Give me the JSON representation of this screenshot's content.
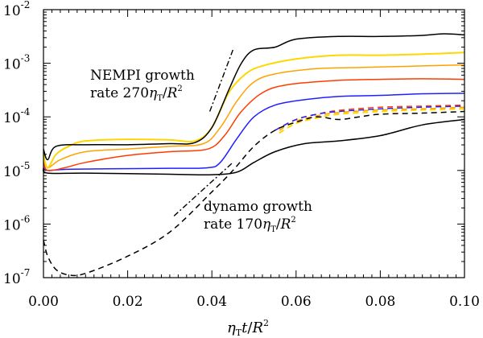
{
  "chart_data": {
    "type": "line",
    "title": "",
    "xlabel": "ηTt/R²",
    "ylabel": "",
    "xlim": [
      0.0,
      0.1
    ],
    "ylim_log10": [
      -7,
      -2
    ],
    "y_scale": "log",
    "x_ticks": [
      {
        "value": 0.0,
        "label": "0.00"
      },
      {
        "value": 0.02,
        "label": "0.02"
      },
      {
        "value": 0.04,
        "label": "0.04"
      },
      {
        "value": 0.06,
        "label": "0.06"
      },
      {
        "value": 0.08,
        "label": "0.08"
      },
      {
        "value": 0.1,
        "label": "0.10"
      }
    ],
    "y_ticks": [
      {
        "exp": -2,
        "base": "10",
        "sup": "-2"
      },
      {
        "exp": -3,
        "base": "10",
        "sup": "-3"
      },
      {
        "exp": -4,
        "base": "10",
        "sup": "-4"
      },
      {
        "exp": -5,
        "base": "10",
        "sup": "-5"
      },
      {
        "exp": -6,
        "base": "10",
        "sup": "-6"
      },
      {
        "exp": -7,
        "base": "10",
        "sup": "-7"
      }
    ],
    "annotations": {
      "nempi_line1": "NEMPI growth",
      "nempi_rate_prefix": "rate 270",
      "nempi_eta": "η",
      "nempi_eta_sub": "T",
      "nempi_over": "/",
      "nempi_R": "R",
      "nempi_R_sup": "2",
      "dynamo_line1": "dynamo growth",
      "dynamo_rate_prefix": "rate 170",
      "dynamo_eta": "η",
      "dynamo_eta_sub": "T",
      "dynamo_over": "/",
      "dynamo_R": "R",
      "dynamo_R_sup": "2"
    },
    "xlabel_parts": {
      "eta": "η",
      "eta_sub": "T",
      "t": "t",
      "over": "/",
      "R": "R",
      "R_sup": "2"
    },
    "series": [
      {
        "name": "black-solid-top",
        "color": "#000000",
        "dash": "solid",
        "points": [
          [
            0.0,
            -4.6
          ],
          [
            0.001,
            -4.8
          ],
          [
            0.003,
            -4.55
          ],
          [
            0.01,
            -4.52
          ],
          [
            0.02,
            -4.52
          ],
          [
            0.03,
            -4.5
          ],
          [
            0.036,
            -4.48
          ],
          [
            0.04,
            -4.2
          ],
          [
            0.044,
            -3.5
          ],
          [
            0.047,
            -3.0
          ],
          [
            0.05,
            -2.75
          ],
          [
            0.055,
            -2.7
          ],
          [
            0.06,
            -2.55
          ],
          [
            0.07,
            -2.5
          ],
          [
            0.08,
            -2.5
          ],
          [
            0.09,
            -2.48
          ],
          [
            0.095,
            -2.45
          ],
          [
            0.1,
            -2.47
          ]
        ]
      },
      {
        "name": "yellow-solid",
        "color": "#ffd700",
        "dash": "solid",
        "points": [
          [
            0.0,
            -4.7
          ],
          [
            0.001,
            -4.95
          ],
          [
            0.003,
            -4.7
          ],
          [
            0.006,
            -4.55
          ],
          [
            0.01,
            -4.45
          ],
          [
            0.02,
            -4.42
          ],
          [
            0.03,
            -4.43
          ],
          [
            0.036,
            -4.45
          ],
          [
            0.04,
            -4.2
          ],
          [
            0.044,
            -3.55
          ],
          [
            0.048,
            -3.2
          ],
          [
            0.052,
            -3.05
          ],
          [
            0.06,
            -2.92
          ],
          [
            0.07,
            -2.85
          ],
          [
            0.08,
            -2.85
          ],
          [
            0.09,
            -2.83
          ],
          [
            0.1,
            -2.8
          ]
        ]
      },
      {
        "name": "orange-solid",
        "color": "#ffa200",
        "dash": "solid",
        "points": [
          [
            0.0,
            -4.75
          ],
          [
            0.001,
            -4.95
          ],
          [
            0.004,
            -4.8
          ],
          [
            0.01,
            -4.65
          ],
          [
            0.02,
            -4.6
          ],
          [
            0.03,
            -4.55
          ],
          [
            0.038,
            -4.5
          ],
          [
            0.042,
            -4.2
          ],
          [
            0.046,
            -3.7
          ],
          [
            0.05,
            -3.35
          ],
          [
            0.055,
            -3.2
          ],
          [
            0.065,
            -3.1
          ],
          [
            0.075,
            -3.08
          ],
          [
            0.09,
            -3.05
          ],
          [
            0.1,
            -3.03
          ]
        ]
      },
      {
        "name": "red-solid",
        "color": "#ff3c00",
        "dash": "solid",
        "points": [
          [
            0.0,
            -4.85
          ],
          [
            0.001,
            -5.0
          ],
          [
            0.005,
            -4.95
          ],
          [
            0.01,
            -4.85
          ],
          [
            0.02,
            -4.72
          ],
          [
            0.03,
            -4.65
          ],
          [
            0.039,
            -4.6
          ],
          [
            0.043,
            -4.35
          ],
          [
            0.047,
            -3.9
          ],
          [
            0.052,
            -3.55
          ],
          [
            0.058,
            -3.4
          ],
          [
            0.07,
            -3.32
          ],
          [
            0.08,
            -3.3
          ],
          [
            0.09,
            -3.29
          ],
          [
            0.1,
            -3.3
          ]
        ]
      },
      {
        "name": "blue-solid",
        "color": "#2020ff",
        "dash": "solid",
        "points": [
          [
            0.0,
            -4.95
          ],
          [
            0.001,
            -5.0
          ],
          [
            0.005,
            -4.98
          ],
          [
            0.015,
            -4.97
          ],
          [
            0.03,
            -4.96
          ],
          [
            0.039,
            -4.95
          ],
          [
            0.042,
            -4.85
          ],
          [
            0.046,
            -4.4
          ],
          [
            0.05,
            -4.0
          ],
          [
            0.055,
            -3.78
          ],
          [
            0.062,
            -3.68
          ],
          [
            0.07,
            -3.62
          ],
          [
            0.08,
            -3.6
          ],
          [
            0.09,
            -3.57
          ],
          [
            0.1,
            -3.56
          ]
        ]
      },
      {
        "name": "black-solid-bottom",
        "color": "#000000",
        "dash": "solid",
        "points": [
          [
            0.0,
            -4.95
          ],
          [
            0.001,
            -5.05
          ],
          [
            0.01,
            -5.05
          ],
          [
            0.03,
            -5.07
          ],
          [
            0.04,
            -5.08
          ],
          [
            0.046,
            -5.03
          ],
          [
            0.05,
            -4.85
          ],
          [
            0.055,
            -4.65
          ],
          [
            0.062,
            -4.5
          ],
          [
            0.07,
            -4.45
          ],
          [
            0.08,
            -4.35
          ],
          [
            0.09,
            -4.15
          ],
          [
            0.1,
            -4.05
          ]
        ]
      },
      {
        "name": "black-dashed",
        "color": "#000000",
        "dash": "dashed",
        "points": [
          [
            0.0,
            -6.3
          ],
          [
            0.001,
            -6.6
          ],
          [
            0.003,
            -6.85
          ],
          [
            0.006,
            -6.95
          ],
          [
            0.01,
            -6.92
          ],
          [
            0.02,
            -6.6
          ],
          [
            0.03,
            -6.15
          ],
          [
            0.04,
            -5.4
          ],
          [
            0.045,
            -5.0
          ],
          [
            0.05,
            -4.55
          ],
          [
            0.055,
            -4.25
          ],
          [
            0.06,
            -4.1
          ],
          [
            0.065,
            -4.0
          ],
          [
            0.07,
            -4.05
          ],
          [
            0.075,
            -4.0
          ],
          [
            0.08,
            -3.95
          ],
          [
            0.09,
            -3.93
          ],
          [
            0.1,
            -3.9
          ]
        ]
      },
      {
        "name": "blue-dashed",
        "color": "#2020ff",
        "dash": "dashed",
        "points": [
          [
            0.055,
            -4.25
          ],
          [
            0.06,
            -4.05
          ],
          [
            0.065,
            -3.95
          ],
          [
            0.07,
            -3.9
          ],
          [
            0.08,
            -3.85
          ],
          [
            0.09,
            -3.82
          ],
          [
            0.1,
            -3.8
          ]
        ]
      },
      {
        "name": "red-dashed",
        "color": "#ff3c00",
        "dash": "dashed",
        "points": [
          [
            0.055,
            -4.25
          ],
          [
            0.06,
            -4.05
          ],
          [
            0.065,
            -3.95
          ],
          [
            0.07,
            -3.88
          ],
          [
            0.08,
            -3.82
          ],
          [
            0.09,
            -3.8
          ],
          [
            0.1,
            -3.78
          ]
        ]
      },
      {
        "name": "orange-dashed",
        "color": "#ffa200",
        "dash": "dashed",
        "points": [
          [
            0.056,
            -4.25
          ],
          [
            0.06,
            -4.08
          ],
          [
            0.065,
            -3.98
          ],
          [
            0.07,
            -3.92
          ],
          [
            0.08,
            -3.87
          ],
          [
            0.09,
            -3.85
          ],
          [
            0.1,
            -3.82
          ]
        ]
      },
      {
        "name": "yellow-dashed",
        "color": "#ffd700",
        "dash": "dashed",
        "points": [
          [
            0.056,
            -4.3
          ],
          [
            0.06,
            -4.12
          ],
          [
            0.065,
            -4.02
          ],
          [
            0.07,
            -3.95
          ],
          [
            0.08,
            -3.9
          ],
          [
            0.09,
            -3.87
          ],
          [
            0.1,
            -3.85
          ]
        ]
      }
    ],
    "reference_lines": [
      {
        "name": "nempi-growth-reference",
        "color": "#000000",
        "dash": "dashdot",
        "points": [
          [
            0.0395,
            -3.9
          ],
          [
            0.045,
            -2.75
          ]
        ]
      },
      {
        "name": "dynamo-growth-reference",
        "color": "#000000",
        "dash": "dashdot",
        "points": [
          [
            0.031,
            -5.85
          ],
          [
            0.045,
            -4.85
          ]
        ]
      }
    ]
  }
}
